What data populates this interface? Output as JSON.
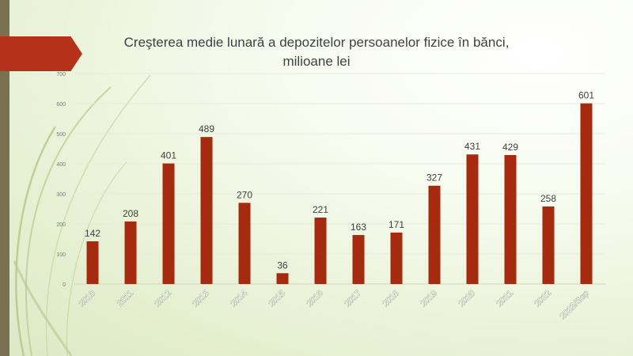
{
  "title": {
    "line1": "Creşterea medie lunară a depozitelor persoanelor fizice în bănci,",
    "line2": "milioane lei"
  },
  "chart_data": {
    "type": "bar",
    "title": "Creşterea medie lunară a depozitelor persoanelor fizice în bănci, milioane lei",
    "categories": [
      "2010",
      "2011",
      "2012",
      "2013",
      "2014",
      "2015",
      "2016",
      "2017",
      "2018",
      "2019",
      "2020",
      "2021",
      "2022",
      "2023/Sep"
    ],
    "values": [
      142,
      208,
      401,
      489,
      270,
      36,
      221,
      163,
      171,
      327,
      431,
      429,
      258,
      601
    ],
    "ylim": [
      0,
      700
    ],
    "yticks": [
      0,
      100,
      200,
      300,
      400,
      500,
      600,
      700
    ],
    "grid": true,
    "bar_color": "#a52a0e"
  },
  "colors": {
    "accent": "#b5311a",
    "side_bar": "#7a7150",
    "text": "#404040"
  }
}
